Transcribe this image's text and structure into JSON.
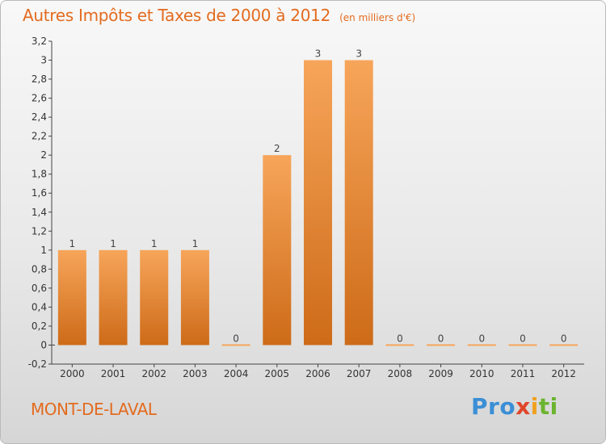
{
  "chart_data": {
    "type": "bar",
    "title": "Autres Impôts et Taxes de 2000 à 2012",
    "unit_note": "(en milliers d'€)",
    "categories": [
      "2000",
      "2001",
      "2002",
      "2003",
      "2004",
      "2005",
      "2006",
      "2007",
      "2008",
      "2009",
      "2010",
      "2011",
      "2012"
    ],
    "values": [
      1,
      1,
      1,
      1,
      0,
      2,
      3,
      3,
      0,
      0,
      0,
      0,
      0
    ],
    "data_labels": [
      "1",
      "1",
      "1",
      "1",
      "0",
      "2",
      "3",
      "3",
      "0",
      "0",
      "0",
      "0",
      "0"
    ],
    "ylim": [
      -0.2,
      3.2
    ],
    "yticks": [
      -0.2,
      0,
      0.2,
      0.4,
      0.6,
      0.8,
      1,
      1.2,
      1.4,
      1.6,
      1.8,
      2,
      2.2,
      2.4,
      2.6,
      2.8,
      3,
      3.2
    ],
    "ytick_labels": [
      "-0,2",
      "0",
      "0,2",
      "0,4",
      "0,6",
      "0,8",
      "1",
      "1,2",
      "1,4",
      "1,6",
      "1,8",
      "2",
      "2,2",
      "2,4",
      "2,6",
      "2,8",
      "3",
      "3,2"
    ],
    "xlabel": "",
    "ylabel": "",
    "grid": false,
    "colors": {
      "bar_top": "#f7a55a",
      "bar_bottom": "#cd6b18",
      "title": "#e36b1f"
    }
  },
  "commune": "MONT-DE-LAVAL",
  "logo": {
    "parts": [
      "Pro",
      "x",
      "i",
      "ti"
    ]
  }
}
